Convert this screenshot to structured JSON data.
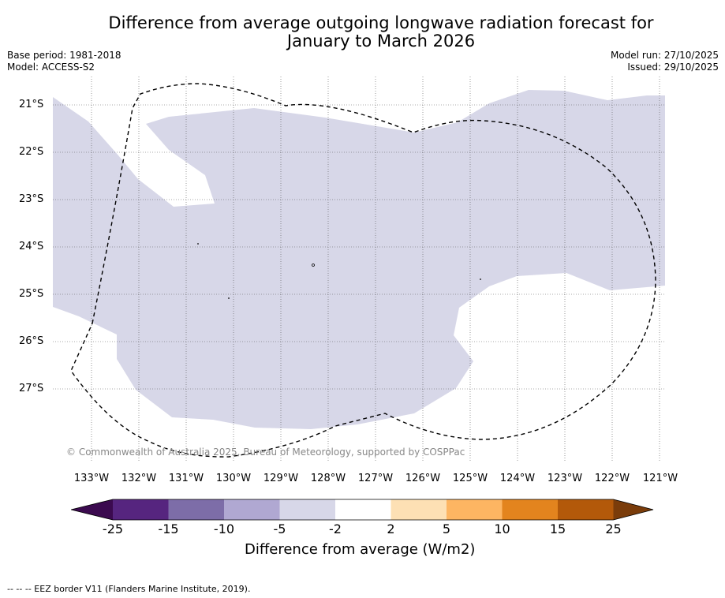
{
  "title_line1": "Difference from average outgoing longwave radiation forecast for",
  "title_line2": "January to March 2026",
  "base_period": "Base period: 1981-2018",
  "model": "Model: ACCESS-S2",
  "model_run": "Model run: 27/10/2025",
  "issued": "Issued: 29/10/2025",
  "copyright": "© Commonwealth of Australia 2025, Bureau of Meteorology, supported by COSPPac",
  "lat_labels": [
    "21°S",
    "22°S",
    "23°S",
    "24°S",
    "25°S",
    "26°S",
    "27°S"
  ],
  "lon_labels": [
    "133°W",
    "132°W",
    "131°W",
    "130°W",
    "129°W",
    "128°W",
    "127°W",
    "126°W",
    "125°W",
    "124°W",
    "123°W",
    "122°W",
    "121°W"
  ],
  "colorbar": {
    "title": "Difference from average (W/m2)",
    "ticks": [
      "-25",
      "-15",
      "-10",
      "-5",
      "-2",
      "2",
      "5",
      "10",
      "15",
      "25"
    ],
    "colors": [
      "#3b0a4f",
      "#56257f",
      "#7d6da8",
      "#b0a8d2",
      "#d7d7e8",
      "#ffffff",
      "#fde0b4",
      "#fdb562",
      "#e3841e",
      "#b3590a",
      "#7a3c0a"
    ]
  },
  "map": {
    "anomaly_class": "-5 to -2",
    "fill_color": "#d7d7e8"
  },
  "footnote": "-- -- -- EEZ border V11 (Flanders Marine Institute, 2019)."
}
